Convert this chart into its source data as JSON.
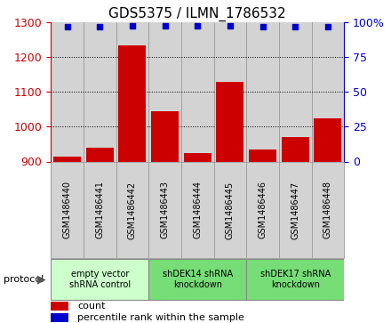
{
  "title": "GDS5375 / ILMN_1786532",
  "samples": [
    "GSM1486440",
    "GSM1486441",
    "GSM1486442",
    "GSM1486443",
    "GSM1486444",
    "GSM1486445",
    "GSM1486446",
    "GSM1486447",
    "GSM1486448"
  ],
  "counts": [
    915,
    940,
    1235,
    1045,
    925,
    1130,
    935,
    970,
    1025
  ],
  "percentiles": [
    97,
    97,
    98,
    97.5,
    97.5,
    97.5,
    97,
    97,
    97
  ],
  "ylim_left": [
    900,
    1300
  ],
  "ylim_right": [
    0,
    100
  ],
  "yticks_left": [
    900,
    1000,
    1100,
    1200,
    1300
  ],
  "yticks_right": [
    0,
    25,
    50,
    75,
    100
  ],
  "bar_color": "#cc0000",
  "scatter_color": "#0000cc",
  "col_bg_color": "#d3d3d3",
  "col_border_color": "#999999",
  "protocol_groups": [
    {
      "label": "empty vector\nshRNA control",
      "start": 0,
      "end": 3,
      "color": "#ccffcc"
    },
    {
      "label": "shDEK14 shRNA\nknockdown",
      "start": 3,
      "end": 6,
      "color": "#77dd77"
    },
    {
      "label": "shDEK17 shRNA\nknockdown",
      "start": 6,
      "end": 9,
      "color": "#77dd77"
    }
  ],
  "legend_count_label": "count",
  "legend_percentile_label": "percentile rank within the sample",
  "protocol_label": "protocol",
  "title_fontsize": 11,
  "tick_fontsize": 9,
  "sample_fontsize": 7
}
